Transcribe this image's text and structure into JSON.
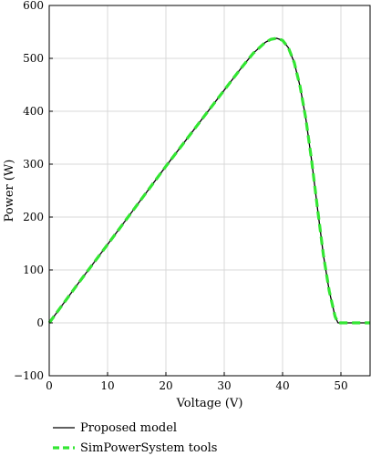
{
  "chart_data": {
    "type": "line",
    "xlabel": "Voltage (V)",
    "ylabel": "Power (W)",
    "xlim": [
      0,
      55
    ],
    "ylim": [
      -100,
      600
    ],
    "x_ticks": [
      0,
      10,
      20,
      30,
      40,
      50
    ],
    "y_ticks": [
      -100,
      0,
      100,
      200,
      300,
      400,
      500,
      600
    ],
    "grid": true,
    "legend_position": "bottom",
    "series": [
      {
        "name": "Proposed model",
        "color": "#000000",
        "style": "solid",
        "x": [
          0,
          5,
          10,
          15,
          20,
          25,
          30,
          33,
          35,
          37,
          38,
          39,
          40,
          41,
          42,
          43,
          44,
          45,
          46,
          47,
          48,
          49,
          49.5,
          50,
          52,
          55
        ],
        "y": [
          0,
          75,
          148,
          222,
          296,
          368,
          440,
          483,
          510,
          530,
          536,
          538,
          534,
          520,
          492,
          447,
          385,
          305,
          215,
          128,
          60,
          12,
          0,
          0,
          0,
          0
        ]
      },
      {
        "name": "SimPowerSystem tools",
        "color": "#33e633",
        "style": "dashed",
        "x": [
          0,
          5,
          10,
          15,
          20,
          25,
          30,
          33,
          35,
          37,
          38,
          39,
          40,
          41,
          42,
          43,
          44,
          45,
          46,
          47,
          48,
          49,
          49.5,
          50,
          52,
          55
        ],
        "y": [
          0,
          75,
          148,
          222,
          296,
          368,
          440,
          483,
          510,
          530,
          536,
          538,
          534,
          520,
          492,
          447,
          385,
          305,
          215,
          128,
          60,
          12,
          0,
          0,
          0,
          0
        ]
      }
    ]
  }
}
